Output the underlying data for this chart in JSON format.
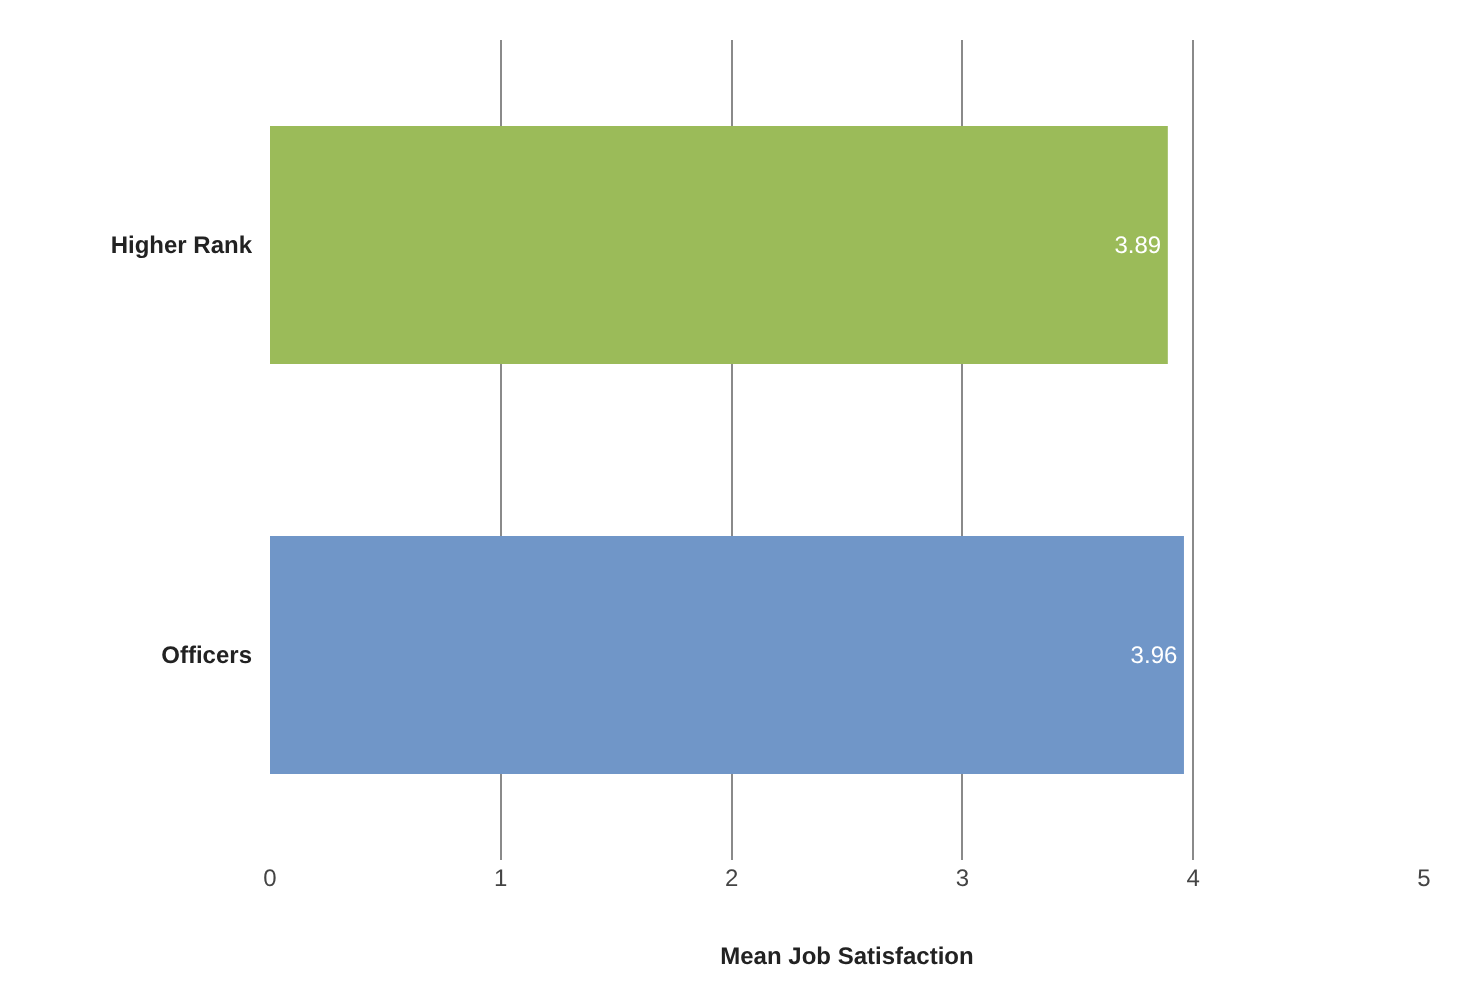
{
  "chart_data": {
    "type": "bar",
    "orientation": "horizontal",
    "categories": [
      "Higher Rank",
      "Officers"
    ],
    "values": [
      3.89,
      3.96
    ],
    "colors": [
      "#9bbb59",
      "#7096c8"
    ],
    "xlim": [
      0,
      5
    ],
    "xticks": [
      0,
      1,
      2,
      3,
      4,
      5
    ],
    "xlabel": "Mean Job Satisfaction",
    "grid": "x",
    "data_labels": true
  }
}
